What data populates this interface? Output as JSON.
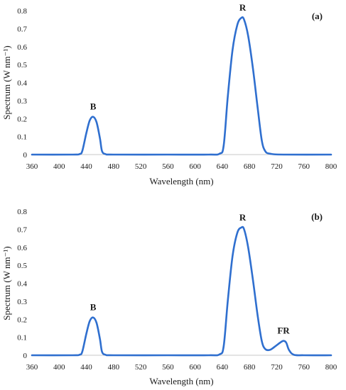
{
  "chart_data": [
    {
      "type": "line",
      "panel_label": "(a)",
      "xlabel": "Wavelength (nm)",
      "ylabel": "Spectrum (W nm⁻¹)",
      "xlim": [
        360,
        800
      ],
      "ylim": [
        0,
        0.8
      ],
      "x_ticks": [
        "360",
        "400",
        "440",
        "480",
        "520",
        "560",
        "600",
        "640",
        "680",
        "720",
        "760",
        "800"
      ],
      "y_ticks": [
        "0",
        "0.1",
        "0.2",
        "0.3",
        "0.4",
        "0.5",
        "0.6",
        "0.7",
        "0.8"
      ],
      "grid": false,
      "line_color": "#2f6fcf",
      "series": [
        {
          "x": [
            360,
            420,
            430,
            434,
            440,
            445,
            450,
            455,
            460,
            463,
            468,
            480,
            560,
            620,
            636,
            642,
            648,
            655,
            662,
            668,
            672,
            678,
            685,
            692,
            698,
            703,
            710,
            730,
            800
          ],
          "y": [
            0,
            0,
            0.003,
            0.02,
            0.12,
            0.19,
            0.21,
            0.18,
            0.09,
            0.02,
            0.003,
            0,
            0,
            0,
            0.005,
            0.05,
            0.32,
            0.58,
            0.72,
            0.76,
            0.75,
            0.66,
            0.48,
            0.26,
            0.08,
            0.02,
            0.005,
            0,
            0
          ]
        }
      ],
      "annotations": [
        {
          "text": "B",
          "x": 450,
          "y": 0.21
        },
        {
          "text": "R",
          "x": 670,
          "y": 0.76
        }
      ]
    },
    {
      "type": "line",
      "panel_label": "(b)",
      "xlabel": "Wavelength (nm)",
      "ylabel": "Spectrum (W nm⁻¹)",
      "xlim": [
        360,
        800
      ],
      "ylim": [
        0,
        0.8
      ],
      "x_ticks": [
        "360",
        "400",
        "440",
        "480",
        "520",
        "560",
        "600",
        "640",
        "680",
        "720",
        "760",
        "800"
      ],
      "y_ticks": [
        "0",
        "0.1",
        "0.2",
        "0.3",
        "0.4",
        "0.5",
        "0.6",
        "0.7",
        "0.8"
      ],
      "grid": false,
      "line_color": "#2f6fcf",
      "series": [
        {
          "x": [
            360,
            420,
            430,
            434,
            440,
            445,
            450,
            455,
            460,
            463,
            468,
            480,
            560,
            620,
            636,
            642,
            648,
            655,
            662,
            668,
            672,
            678,
            685,
            692,
            698,
            703,
            710,
            718,
            725,
            730,
            734,
            738,
            745,
            760,
            800
          ],
          "y": [
            0,
            0,
            0.003,
            0.02,
            0.12,
            0.19,
            0.21,
            0.18,
            0.09,
            0.02,
            0.003,
            0,
            0,
            0,
            0.005,
            0.05,
            0.3,
            0.55,
            0.68,
            0.71,
            0.7,
            0.6,
            0.42,
            0.22,
            0.08,
            0.035,
            0.03,
            0.05,
            0.07,
            0.08,
            0.07,
            0.03,
            0.003,
            0,
            0
          ]
        }
      ],
      "annotations": [
        {
          "text": "B",
          "x": 450,
          "y": 0.21
        },
        {
          "text": "R",
          "x": 670,
          "y": 0.71
        },
        {
          "text": "FR",
          "x": 730,
          "y": 0.08
        }
      ]
    }
  ]
}
